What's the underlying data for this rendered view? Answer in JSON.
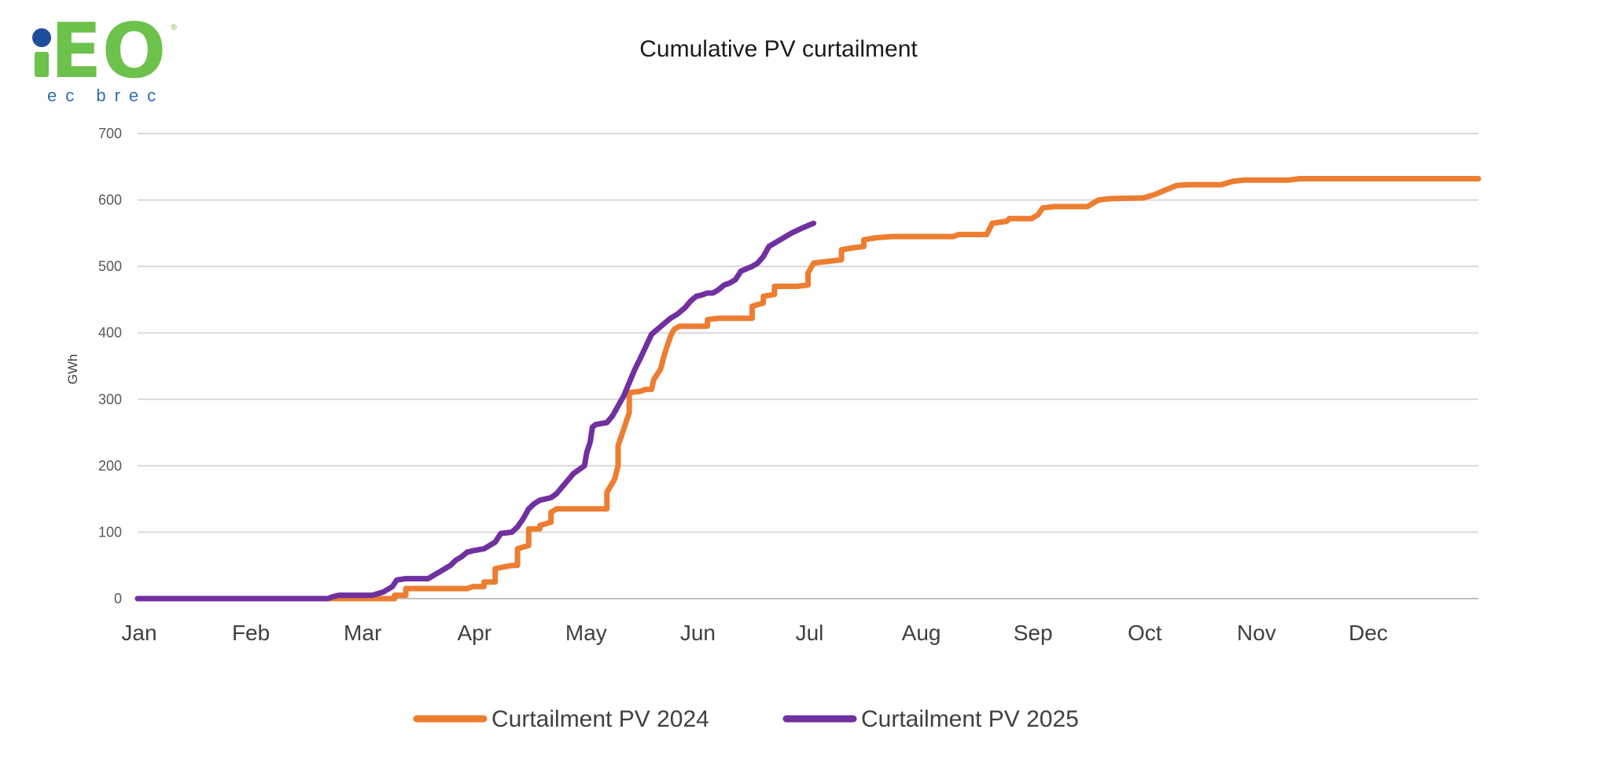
{
  "logo": {
    "main": "iEO",
    "sub": "ec brec",
    "color_green": "#6cc24a",
    "color_blue": "#1f4e9c"
  },
  "chart_data": {
    "type": "line",
    "title": "Cumulative PV curtailment",
    "xlabel": "",
    "ylabel": "GWh",
    "categories": [
      "Jan",
      "Feb",
      "Mar",
      "Apr",
      "May",
      "Jun",
      "Jul",
      "Aug",
      "Sep",
      "Oct",
      "Nov",
      "Dec"
    ],
    "xlim": [
      0,
      12
    ],
    "ylim": [
      0,
      700
    ],
    "yticks": [
      0,
      100,
      200,
      300,
      400,
      500,
      600,
      700
    ],
    "grid": true,
    "legend_position": "bottom",
    "series": [
      {
        "name": "Curtailment PV 2024",
        "color": "#ed7d31",
        "points": [
          [
            0.0,
            0
          ],
          [
            1.7,
            0
          ],
          [
            2.0,
            0
          ],
          [
            2.3,
            0
          ],
          [
            2.3,
            5
          ],
          [
            2.4,
            5
          ],
          [
            2.4,
            15
          ],
          [
            2.6,
            15
          ],
          [
            2.95,
            15
          ],
          [
            3.0,
            18
          ],
          [
            3.1,
            18
          ],
          [
            3.1,
            25
          ],
          [
            3.2,
            25
          ],
          [
            3.2,
            45
          ],
          [
            3.35,
            50
          ],
          [
            3.4,
            50
          ],
          [
            3.4,
            75
          ],
          [
            3.5,
            80
          ],
          [
            3.5,
            105
          ],
          [
            3.6,
            105
          ],
          [
            3.6,
            110
          ],
          [
            3.7,
            115
          ],
          [
            3.7,
            130
          ],
          [
            3.75,
            135
          ],
          [
            3.9,
            135
          ],
          [
            4.1,
            135
          ],
          [
            4.2,
            135
          ],
          [
            4.2,
            160
          ],
          [
            4.27,
            180
          ],
          [
            4.3,
            200
          ],
          [
            4.3,
            230
          ],
          [
            4.36,
            260
          ],
          [
            4.4,
            280
          ],
          [
            4.4,
            310
          ],
          [
            4.5,
            312
          ],
          [
            4.55,
            315
          ],
          [
            4.6,
            315
          ],
          [
            4.62,
            330
          ],
          [
            4.68,
            345
          ],
          [
            4.72,
            370
          ],
          [
            4.77,
            395
          ],
          [
            4.8,
            405
          ],
          [
            4.85,
            410
          ],
          [
            4.9,
            410
          ],
          [
            5.0,
            410
          ],
          [
            5.1,
            410
          ],
          [
            5.1,
            420
          ],
          [
            5.2,
            422
          ],
          [
            5.5,
            422
          ],
          [
            5.5,
            440
          ],
          [
            5.6,
            445
          ],
          [
            5.6,
            455
          ],
          [
            5.7,
            458
          ],
          [
            5.7,
            470
          ],
          [
            5.9,
            470
          ],
          [
            6.0,
            472
          ],
          [
            6.0,
            490
          ],
          [
            6.05,
            505
          ],
          [
            6.2,
            508
          ],
          [
            6.3,
            510
          ],
          [
            6.3,
            525
          ],
          [
            6.4,
            528
          ],
          [
            6.5,
            530
          ],
          [
            6.5,
            540
          ],
          [
            6.6,
            543
          ],
          [
            6.75,
            545
          ],
          [
            7.0,
            545
          ],
          [
            7.3,
            545
          ],
          [
            7.35,
            548
          ],
          [
            7.6,
            548
          ],
          [
            7.65,
            565
          ],
          [
            7.78,
            568
          ],
          [
            7.8,
            572
          ],
          [
            8.0,
            572
          ],
          [
            8.06,
            578
          ],
          [
            8.1,
            588
          ],
          [
            8.2,
            590
          ],
          [
            8.5,
            590
          ],
          [
            8.6,
            600
          ],
          [
            8.7,
            602
          ],
          [
            9.0,
            603
          ],
          [
            9.1,
            608
          ],
          [
            9.2,
            615
          ],
          [
            9.3,
            622
          ],
          [
            9.4,
            623
          ],
          [
            9.7,
            623
          ],
          [
            9.8,
            628
          ],
          [
            9.9,
            630
          ],
          [
            10.3,
            630
          ],
          [
            10.4,
            632
          ],
          [
            11.0,
            632
          ],
          [
            11.5,
            632
          ],
          [
            12.0,
            632
          ]
        ]
      },
      {
        "name": "Curtailment PV 2025",
        "color": "#7030a0",
        "points": [
          [
            0.0,
            0
          ],
          [
            1.0,
            0
          ],
          [
            1.7,
            0
          ],
          [
            1.75,
            3
          ],
          [
            1.8,
            5
          ],
          [
            2.0,
            5
          ],
          [
            2.1,
            5
          ],
          [
            2.2,
            10
          ],
          [
            2.28,
            18
          ],
          [
            2.32,
            28
          ],
          [
            2.4,
            30
          ],
          [
            2.6,
            30
          ],
          [
            2.65,
            35
          ],
          [
            2.7,
            40
          ],
          [
            2.8,
            50
          ],
          [
            2.85,
            58
          ],
          [
            2.9,
            63
          ],
          [
            2.95,
            70
          ],
          [
            3.0,
            72
          ],
          [
            3.1,
            75
          ],
          [
            3.2,
            85
          ],
          [
            3.25,
            98
          ],
          [
            3.35,
            100
          ],
          [
            3.4,
            108
          ],
          [
            3.45,
            120
          ],
          [
            3.5,
            135
          ],
          [
            3.55,
            143
          ],
          [
            3.6,
            148
          ],
          [
            3.7,
            152
          ],
          [
            3.75,
            158
          ],
          [
            3.8,
            168
          ],
          [
            3.85,
            178
          ],
          [
            3.9,
            188
          ],
          [
            4.0,
            200
          ],
          [
            4.02,
            220
          ],
          [
            4.05,
            235
          ],
          [
            4.07,
            258
          ],
          [
            4.1,
            262
          ],
          [
            4.2,
            265
          ],
          [
            4.25,
            275
          ],
          [
            4.3,
            290
          ],
          [
            4.35,
            305
          ],
          [
            4.4,
            325
          ],
          [
            4.45,
            345
          ],
          [
            4.5,
            362
          ],
          [
            4.55,
            380
          ],
          [
            4.6,
            398
          ],
          [
            4.65,
            405
          ],
          [
            4.72,
            415
          ],
          [
            4.77,
            422
          ],
          [
            4.83,
            428
          ],
          [
            4.9,
            438
          ],
          [
            4.95,
            448
          ],
          [
            5.0,
            455
          ],
          [
            5.05,
            457
          ],
          [
            5.1,
            460
          ],
          [
            5.15,
            460
          ],
          [
            5.2,
            465
          ],
          [
            5.25,
            472
          ],
          [
            5.3,
            475
          ],
          [
            5.35,
            480
          ],
          [
            5.4,
            493
          ],
          [
            5.5,
            500
          ],
          [
            5.55,
            505
          ],
          [
            5.6,
            515
          ],
          [
            5.65,
            530
          ],
          [
            5.7,
            535
          ],
          [
            5.8,
            545
          ],
          [
            5.85,
            550
          ],
          [
            5.95,
            558
          ],
          [
            6.05,
            565
          ]
        ]
      }
    ]
  }
}
